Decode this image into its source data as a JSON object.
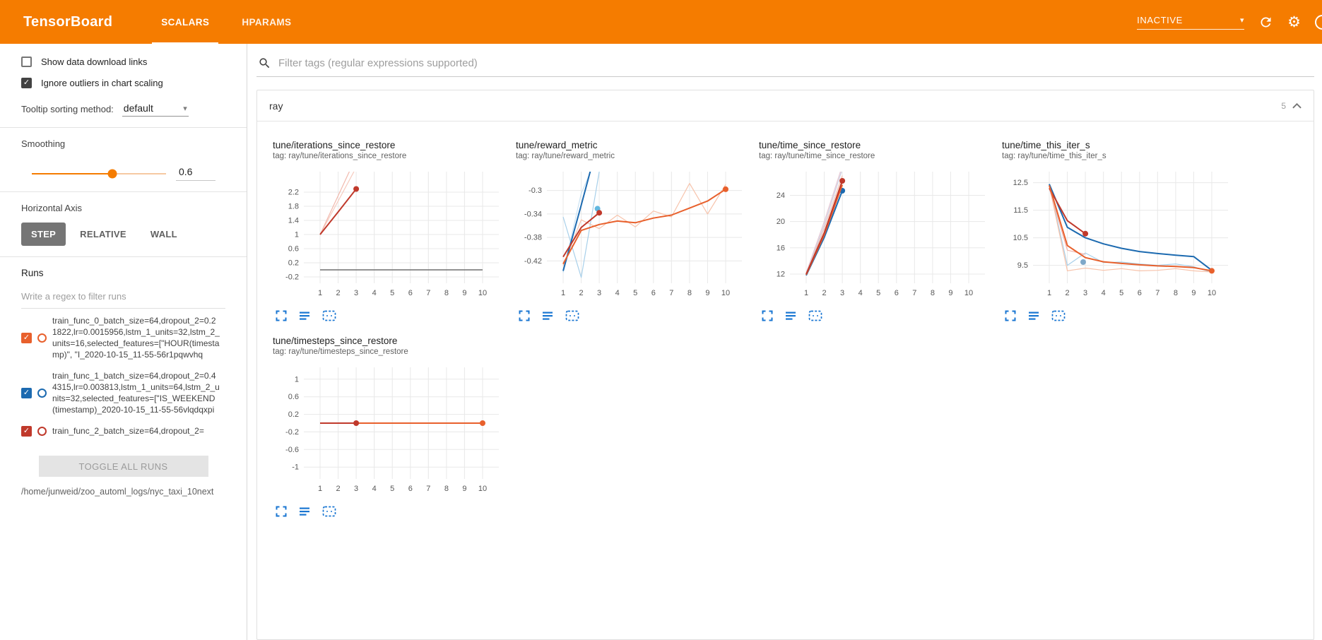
{
  "header": {
    "title": "TensorBoard",
    "tabs": [
      {
        "label": "SCALARS",
        "active": true
      },
      {
        "label": "HPARAMS",
        "active": false
      }
    ],
    "status_dropdown": "INACTIVE"
  },
  "colors": {
    "brand_orange": "#f57c00",
    "icon_blue": "#1976d2",
    "run_red": "#c0392b",
    "run_blue": "#1c6ab0",
    "run_orange": "#e8602c"
  },
  "sidebar": {
    "show_download_links": {
      "label": "Show data download links",
      "checked": false
    },
    "ignore_outliers": {
      "label": "Ignore outliers in chart scaling",
      "checked": true
    },
    "tooltip_sorting": {
      "label": "Tooltip sorting method:",
      "value": "default"
    },
    "smoothing": {
      "label": "Smoothing",
      "value": "0.6",
      "percent": 60
    },
    "horizontal_axis": {
      "label": "Horizontal Axis",
      "options": [
        {
          "label": "STEP",
          "selected": true
        },
        {
          "label": "RELATIVE",
          "selected": false
        },
        {
          "label": "WALL",
          "selected": false
        }
      ]
    },
    "runs": {
      "label": "Runs",
      "filter_placeholder": "Write a regex to filter runs",
      "items": [
        {
          "label": "train_func_0_batch_size=64,dropout_2=0.21822,lr=0.0015956,lstm_1_units=32,lstm_2_units=16,selected_features=[\"HOUR(timestamp)\", \"I_2020-10-15_11-55-56r1pqwvhq",
          "checked": true,
          "color": "#e8602c"
        },
        {
          "label": "train_func_1_batch_size=64,dropout_2=0.44315,lr=0.003813,lstm_1_units=64,lstm_2_units=32,selected_features=[\"IS_WEEKEND(timestamp)_2020-10-15_11-55-56vlqdqxpi",
          "checked": true,
          "color": "#1c6ab0"
        },
        {
          "label": "train_func_2_batch_size=64,dropout_2=",
          "checked": true,
          "color": "#c0392b"
        }
      ],
      "toggle_all_label": "TOGGLE ALL RUNS",
      "log_path": "/home/junweid/zoo_automl_logs/nyc_taxi_10next"
    }
  },
  "main": {
    "filter_placeholder": "Filter tags (regular expressions supported)",
    "section": {
      "title": "ray",
      "count": "5"
    }
  },
  "chart_data": [
    {
      "type": "line",
      "title": "tune/iterations_since_restore",
      "tag": "tag: ray/tune/iterations_since_restore",
      "xticks": [
        1,
        2,
        3,
        4,
        5,
        6,
        7,
        8,
        9,
        10
      ],
      "yticks": [
        -0.2,
        0.2,
        0.6,
        1,
        1.4,
        1.8,
        2.2
      ],
      "xlim": [
        0.1,
        10.9
      ],
      "ylim": [
        -0.38,
        2.78
      ],
      "series": [
        {
          "name": "run-2-raw",
          "color": "#f6cabe",
          "width": 1.2,
          "points": [
            [
              1,
              1
            ],
            [
              2,
              1.95
            ],
            [
              3,
              2.9
            ]
          ],
          "end_dot": false
        },
        {
          "name": "run-0-raw",
          "color": "#f2b8ac",
          "width": 1.2,
          "points": [
            [
              1,
              1
            ],
            [
              2,
              2.1
            ],
            [
              3,
              3.2
            ]
          ],
          "end_dot": false
        },
        {
          "name": "run-0-smoothed",
          "color": "#c0392b",
          "width": 2,
          "points": [
            [
              1,
              1
            ],
            [
              2,
              1.64
            ],
            [
              3,
              2.29
            ]
          ],
          "end_dot": true
        },
        {
          "name": "flat-zero-run",
          "color": "#6f6f6f",
          "width": 1.6,
          "points": [
            [
              1,
              0
            ],
            [
              10,
              0
            ]
          ],
          "end_dot": false
        }
      ]
    },
    {
      "type": "line",
      "title": "tune/reward_metric",
      "tag": "tag: ray/tune/reward_metric",
      "xticks": [
        1,
        2,
        3,
        4,
        5,
        6,
        7,
        8,
        9,
        10
      ],
      "yticks": [
        -0.42,
        -0.38,
        -0.34,
        -0.3
      ],
      "xlim": [
        0.1,
        10.9
      ],
      "ylim": [
        -0.458,
        -0.268
      ],
      "series": [
        {
          "name": "run-1-raw-a",
          "color": "#c9e2f3",
          "width": 1.2,
          "points": [
            [
              1,
              -0.44
            ],
            [
              2,
              -0.305
            ],
            [
              2.6,
              -0.262
            ]
          ],
          "end_dot": false
        },
        {
          "name": "run-1-raw-b",
          "color": "#a8d0ea",
          "width": 1.2,
          "points": [
            [
              1,
              -0.345
            ],
            [
              2,
              -0.448
            ],
            [
              3,
              -0.268
            ]
          ],
          "end_dot": false
        },
        {
          "name": "run-2-raw",
          "color": "#f7c3ab",
          "width": 1.2,
          "points": [
            [
              1,
              -0.428
            ],
            [
              2,
              -0.35
            ],
            [
              3,
              -0.365
            ],
            [
              4,
              -0.342
            ],
            [
              5,
              -0.362
            ],
            [
              6,
              -0.335
            ],
            [
              7,
              -0.345
            ],
            [
              8,
              -0.288
            ],
            [
              9,
              -0.34
            ],
            [
              10,
              -0.29
            ]
          ],
          "end_dot": false
        },
        {
          "name": "run-1-smoothed",
          "color": "#1c6ab0",
          "width": 2,
          "points": [
            [
              1,
              -0.437
            ],
            [
              2,
              -0.325
            ],
            [
              2.55,
              -0.262
            ]
          ],
          "end_dot": false
        },
        {
          "name": "run-1-end-marker",
          "color": "#62b8e0",
          "width": 2,
          "points": [
            [
              2.82,
              -0.331
            ],
            [
              2.9,
              -0.331
            ]
          ],
          "end_dot": true
        },
        {
          "name": "run-0-smoothed",
          "color": "#c0392b",
          "width": 2,
          "points": [
            [
              1,
              -0.413
            ],
            [
              2,
              -0.363
            ],
            [
              3,
              -0.338
            ]
          ],
          "end_dot": true
        },
        {
          "name": "run-2-smoothed",
          "color": "#e8602c",
          "width": 2,
          "points": [
            [
              1,
              -0.425
            ],
            [
              2,
              -0.368
            ],
            [
              3,
              -0.358
            ],
            [
              4,
              -0.352
            ],
            [
              5,
              -0.355
            ],
            [
              6,
              -0.347
            ],
            [
              7,
              -0.342
            ],
            [
              8,
              -0.33
            ],
            [
              9,
              -0.318
            ],
            [
              10,
              -0.298
            ]
          ],
          "end_dot": true
        }
      ]
    },
    {
      "type": "line",
      "title": "tune/time_since_restore",
      "tag": "tag: ray/tune/time_since_restore",
      "xticks": [
        1,
        2,
        3,
        4,
        5,
        6,
        7,
        8,
        9,
        10
      ],
      "yticks": [
        12,
        16,
        20,
        24
      ],
      "xlim": [
        0.1,
        10.9
      ],
      "ylim": [
        10.6,
        27.6
      ],
      "series": [
        {
          "name": "raw-lavender",
          "color": "#ccd0e2",
          "width": 1.2,
          "points": [
            [
              1,
              12
            ],
            [
              2,
              19.5
            ],
            [
              3,
              28
            ]
          ],
          "end_dot": false
        },
        {
          "name": "raw-pink",
          "color": "#e6c8d4",
          "width": 1.2,
          "points": [
            [
              1,
              12.2
            ],
            [
              2,
              20
            ],
            [
              3,
              28.5
            ]
          ],
          "end_dot": false
        },
        {
          "name": "raw-salmon",
          "color": "#f2c2b2",
          "width": 1.2,
          "points": [
            [
              1,
              11.9
            ],
            [
              2,
              19
            ],
            [
              3,
              27
            ]
          ],
          "end_dot": false
        },
        {
          "name": "run-1-smoothed",
          "color": "#1c6ab0",
          "width": 2,
          "points": [
            [
              1,
              11.8
            ],
            [
              2,
              17.6
            ],
            [
              3,
              24.7
            ]
          ],
          "end_dot": true
        },
        {
          "name": "run-2-smoothed",
          "color": "#e8602c",
          "width": 2,
          "points": [
            [
              1,
              11.9
            ],
            [
              2,
              18
            ],
            [
              3,
              25.6
            ]
          ],
          "end_dot": false
        },
        {
          "name": "run-0-smoothed",
          "color": "#c0392b",
          "width": 2,
          "points": [
            [
              1,
              12
            ],
            [
              2,
              18.3
            ],
            [
              3,
              26.2
            ]
          ],
          "end_dot": true
        }
      ]
    },
    {
      "type": "line",
      "title": "tune/time_this_iter_s",
      "tag": "tag: ray/tune/time_this_iter_s",
      "xticks": [
        1,
        2,
        3,
        4,
        5,
        6,
        7,
        8,
        9,
        10
      ],
      "yticks": [
        9.5,
        10.5,
        11.5,
        12.5
      ],
      "xlim": [
        0.1,
        10.9
      ],
      "ylim": [
        8.85,
        12.9
      ],
      "series": [
        {
          "name": "run-1-raw",
          "color": "#a8d0ea",
          "width": 1.2,
          "points": [
            [
              1,
              12.45
            ],
            [
              2,
              9.5
            ],
            [
              3,
              9.95
            ],
            [
              4,
              9.6
            ],
            [
              5,
              9.62
            ],
            [
              6,
              9.55
            ],
            [
              7,
              9.5
            ],
            [
              8,
              9.55
            ],
            [
              9,
              9.45
            ],
            [
              10,
              9.25
            ]
          ],
          "end_dot": false
        },
        {
          "name": "run-2-raw",
          "color": "#f7c3ab",
          "width": 1.2,
          "points": [
            [
              1,
              12.4
            ],
            [
              2,
              9.3
            ],
            [
              3,
              9.4
            ],
            [
              4,
              9.32
            ],
            [
              5,
              9.38
            ],
            [
              6,
              9.3
            ],
            [
              7,
              9.32
            ],
            [
              8,
              9.38
            ],
            [
              9,
              9.3
            ],
            [
              10,
              9.26
            ]
          ],
          "end_dot": false
        },
        {
          "name": "run-0-raw",
          "color": "#f0b5ad",
          "width": 1.2,
          "points": [
            [
              1,
              12.3
            ],
            [
              2,
              10.05
            ],
            [
              3,
              9.9
            ]
          ],
          "end_dot": false
        },
        {
          "name": "run-1-smoothed",
          "color": "#1c6ab0",
          "width": 2,
          "points": [
            [
              1,
              12.45
            ],
            [
              2,
              10.88
            ],
            [
              3,
              10.5
            ],
            [
              4,
              10.28
            ],
            [
              5,
              10.12
            ],
            [
              6,
              10.0
            ],
            [
              7,
              9.93
            ],
            [
              8,
              9.87
            ],
            [
              9,
              9.82
            ],
            [
              10,
              9.32
            ]
          ],
          "end_dot": false
        },
        {
          "name": "run-1-end-marker",
          "color": "#7fa8c9",
          "width": 2,
          "points": [
            [
              2.8,
              9.62
            ],
            [
              2.88,
              9.62
            ]
          ],
          "end_dot": true
        },
        {
          "name": "run-0-smoothed",
          "color": "#c0392b",
          "width": 2,
          "points": [
            [
              1,
              12.3
            ],
            [
              2,
              11.12
            ],
            [
              3,
              10.65
            ]
          ],
          "end_dot": true
        },
        {
          "name": "run-2-smoothed",
          "color": "#e8602c",
          "width": 2,
          "points": [
            [
              1,
              12.4
            ],
            [
              2,
              10.22
            ],
            [
              3,
              9.78
            ],
            [
              4,
              9.63
            ],
            [
              5,
              9.57
            ],
            [
              6,
              9.52
            ],
            [
              7,
              9.48
            ],
            [
              8,
              9.46
            ],
            [
              9,
              9.42
            ],
            [
              10,
              9.3
            ]
          ],
          "end_dot": true
        }
      ]
    },
    {
      "type": "line",
      "title": "tune/timesteps_since_restore",
      "tag": "tag: ray/tune/timesteps_since_restore",
      "xticks": [
        1,
        2,
        3,
        4,
        5,
        6,
        7,
        8,
        9,
        10
      ],
      "yticks": [
        -1,
        -0.6,
        -0.2,
        0.2,
        0.6,
        1
      ],
      "xlim": [
        0.1,
        10.9
      ],
      "ylim": [
        -1.27,
        1.27
      ],
      "series": [
        {
          "name": "run-2",
          "color": "#e8602c",
          "width": 2,
          "points": [
            [
              1,
              0
            ],
            [
              10,
              0
            ]
          ],
          "end_dot": true
        },
        {
          "name": "run-0",
          "color": "#c0392b",
          "width": 2,
          "points": [
            [
              1,
              0
            ],
            [
              3,
              0
            ]
          ],
          "end_dot": true
        }
      ]
    }
  ]
}
